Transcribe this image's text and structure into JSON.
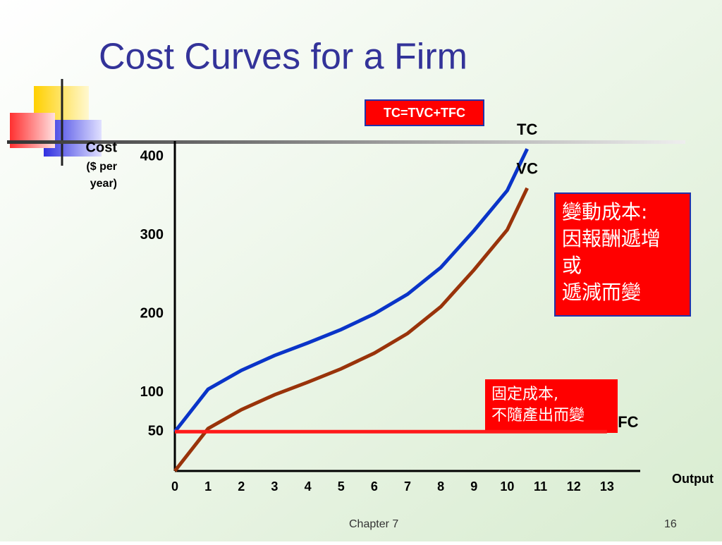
{
  "chart_data": {
    "type": "line",
    "title": "Cost Curves for a Firm",
    "formula": "TC=TVC+TFC",
    "y_label": [
      "Cost",
      "($ per",
      "year)"
    ],
    "x_label": "Output",
    "xlim": [
      0,
      14
    ],
    "ylim": [
      0,
      420
    ],
    "xticks": [
      0,
      1,
      2,
      3,
      4,
      5,
      6,
      7,
      8,
      9,
      10,
      11,
      12,
      13
    ],
    "yticks": [
      50,
      100,
      200,
      300,
      400
    ],
    "series": [
      {
        "name": "TC",
        "color": "#0a34c8",
        "x": [
          0,
          1,
          2,
          3,
          4,
          5,
          6,
          7,
          8,
          9,
          10,
          10.6
        ],
        "values": [
          50,
          104,
          128,
          147,
          163,
          180,
          200,
          225,
          259,
          306,
          357,
          410
        ]
      },
      {
        "name": "VC",
        "color": "#99330a",
        "x": [
          0,
          1,
          2,
          3,
          4,
          5,
          6,
          7,
          8,
          9,
          10,
          10.6
        ],
        "values": [
          0,
          54,
          78,
          97,
          113,
          130,
          150,
          175,
          209,
          256,
          307,
          360
        ]
      },
      {
        "name": "FC",
        "color": "#ff1a1a",
        "x": [
          0,
          13
        ],
        "values": [
          50,
          50
        ]
      }
    ],
    "annotations": [
      {
        "lines": [
          "變動成本:",
          "因報酬遞增",
          "或",
          "遞減而變"
        ]
      },
      {
        "lines": [
          "固定成本,",
          "不隨產出而變"
        ]
      }
    ],
    "footer": "Chapter 7",
    "page": "16"
  }
}
